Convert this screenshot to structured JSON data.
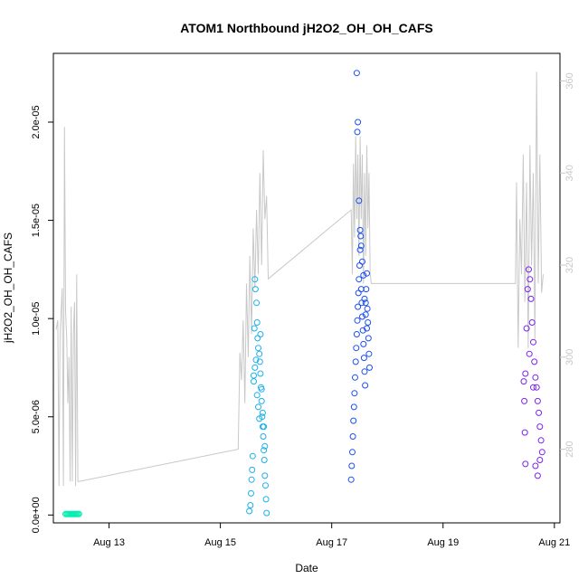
{
  "chart_data": {
    "type": "scatter",
    "title": "ATOM1 Northbound jH2O2_OH_OH_CAFS",
    "xlabel": "Date",
    "ylabel": "jH2O2_OH_OH_CAFS",
    "x_range_days": [
      12.0,
      21.1
    ],
    "ylim": [
      -4e-07,
      2.35e-05
    ],
    "y2lim": [
      264,
      366
    ],
    "x_ticks": [
      {
        "v": 13,
        "label": "Aug 13"
      },
      {
        "v": 15,
        "label": "Aug 15"
      },
      {
        "v": 17,
        "label": "Aug 17"
      },
      {
        "v": 19,
        "label": "Aug 19"
      },
      {
        "v": 21,
        "label": "Aug 21"
      }
    ],
    "y_ticks": [
      {
        "v": 0,
        "label": "0.0e+00"
      },
      {
        "v": 5e-06,
        "label": "5.0e-06"
      },
      {
        "v": 1e-05,
        "label": "1.0e-05"
      },
      {
        "v": 1.5e-05,
        "label": "1.5e-05"
      },
      {
        "v": 2e-05,
        "label": "2.0e-05"
      }
    ],
    "y2_ticks": [
      {
        "v": 280,
        "label": "280"
      },
      {
        "v": 300,
        "label": "300"
      },
      {
        "v": 320,
        "label": "320"
      },
      {
        "v": 340,
        "label": "340"
      },
      {
        "v": 360,
        "label": "360"
      }
    ],
    "right_axis_color": "#c8c8c8",
    "grid": false,
    "series": [
      {
        "color": "#00eeb0",
        "x": [
          12.22,
          12.24,
          12.26,
          12.28,
          12.3,
          12.32,
          12.34,
          12.36,
          12.38,
          12.4,
          12.42,
          12.44,
          12.46
        ],
        "y": [
          5e-08,
          5e-08,
          5e-08,
          5e-08,
          5e-08,
          5e-08,
          5e-08,
          5e-08,
          5e-08,
          5e-08,
          5e-08,
          5e-08,
          5e-08
        ]
      },
      {
        "color": "#1ab0ee",
        "x": [
          15.52,
          15.54,
          15.55,
          15.56,
          15.57,
          15.58,
          15.6,
          15.61,
          15.62,
          15.63,
          15.65,
          15.66,
          15.67,
          15.68,
          15.7,
          15.71,
          15.72,
          15.73,
          15.74,
          15.75,
          15.76,
          15.77,
          15.78,
          15.79,
          15.8,
          15.81,
          15.82,
          15.83,
          15.6,
          15.62,
          15.64,
          15.66,
          15.68,
          15.7,
          15.72,
          15.74,
          15.76,
          15.78,
          15.8
        ],
        "y": [
          2e-07,
          5e-07,
          1.1e-06,
          1.8e-06,
          2.3e-06,
          3e-06,
          6.8e-06,
          9.5e-06,
          1.2e-05,
          1.15e-05,
          1.08e-05,
          9.8e-06,
          9e-06,
          8.5e-06,
          8.2e-06,
          7.8e-06,
          9.2e-06,
          6.5e-06,
          5.8e-06,
          5e-06,
          4.5e-06,
          4e-06,
          3.3e-06,
          2.8e-06,
          2e-06,
          1.5e-06,
          8e-07,
          1e-07,
          7.1e-06,
          7.5e-06,
          7.9e-06,
          6.1e-06,
          5.5e-06,
          4.9e-06,
          7.2e-06,
          6.4e-06,
          5.2e-06,
          4.5e-06,
          3.5e-06
        ]
      },
      {
        "color": "#1a4ff0",
        "x": [
          17.35,
          17.36,
          17.37,
          17.38,
          17.39,
          17.4,
          17.41,
          17.42,
          17.43,
          17.44,
          17.45,
          17.46,
          17.47,
          17.48,
          17.49,
          17.5,
          17.51,
          17.52,
          17.53,
          17.54,
          17.55,
          17.56,
          17.57,
          17.58,
          17.59,
          17.6,
          17.61,
          17.62,
          17.63,
          17.64,
          17.65,
          17.66,
          17.67,
          17.68,
          17.45,
          17.46,
          17.47,
          17.49,
          17.51,
          17.53,
          17.55,
          17.57,
          17.59,
          17.61,
          17.63
        ],
        "y": [
          1.8e-06,
          2.5e-06,
          3.2e-06,
          4e-06,
          4.8e-06,
          5.5e-06,
          6.2e-06,
          7e-06,
          7.8e-06,
          8.5e-06,
          9.2e-06,
          9.9e-06,
          1.06e-05,
          1.13e-05,
          1.2e-05,
          1.27e-05,
          1.35e-05,
          1.42e-05,
          1.15e-05,
          1.08e-05,
          1.01e-05,
          9.4e-06,
          8.7e-06,
          8e-06,
          7.3e-06,
          6.6e-06,
          1.08e-05,
          1.15e-05,
          1.23e-05,
          1.05e-05,
          9.8e-06,
          9e-06,
          8.2e-06,
          7.5e-06,
          2.25e-05,
          1.95e-05,
          2e-05,
          1.6e-05,
          1.45e-05,
          1.37e-05,
          1.29e-05,
          1.22e-05,
          1.1e-05,
          1.02e-05,
          9.5e-06
        ]
      },
      {
        "color": "#7a22ee",
        "x": [
          20.45,
          20.46,
          20.47,
          20.48,
          20.5,
          20.52,
          20.54,
          20.56,
          20.58,
          20.6,
          20.62,
          20.64,
          20.66,
          20.68,
          20.7,
          20.72,
          20.74,
          20.76,
          20.78,
          20.48,
          20.55,
          20.62,
          20.66,
          20.7,
          20.74
        ],
        "y": [
          6.8e-06,
          5.8e-06,
          4.2e-06,
          2.6e-06,
          9.5e-06,
          1.15e-05,
          1.25e-05,
          1.2e-05,
          1.1e-05,
          9.8e-06,
          8.8e-06,
          7.8e-06,
          7e-06,
          6.5e-06,
          5.8e-06,
          5.2e-06,
          4.5e-06,
          3.8e-06,
          3.2e-06,
          7.2e-06,
          8.2e-06,
          6.5e-06,
          2.5e-06,
          2e-06,
          2.8e-06
        ]
      }
    ],
    "altitude_line": {
      "color": "#c8c8c8",
      "x": [
        12.05,
        12.08,
        12.1,
        12.12,
        12.14,
        12.16,
        12.18,
        12.2,
        12.22,
        12.24,
        12.26,
        12.28,
        12.3,
        12.32,
        12.34,
        12.36,
        12.38,
        12.4,
        12.42,
        12.44,
        12.46,
        15.32,
        15.35,
        15.38,
        15.41,
        15.44,
        15.47,
        15.5,
        15.53,
        15.56,
        15.59,
        15.62,
        15.65,
        15.68,
        15.71,
        15.74,
        15.77,
        15.8,
        15.83,
        15.86,
        17.35,
        17.37,
        17.39,
        17.41,
        17.43,
        17.45,
        17.47,
        17.49,
        17.51,
        17.53,
        17.55,
        17.57,
        17.59,
        17.61,
        17.63,
        17.65,
        17.67,
        17.69,
        17.71,
        20.3,
        20.32,
        20.35,
        20.38,
        20.41,
        20.44,
        20.47,
        20.5,
        20.53,
        20.56,
        20.59,
        20.62,
        20.65,
        20.68,
        20.71,
        20.74,
        20.77,
        20.8
      ],
      "y": [
        306,
        308,
        272,
        305,
        310,
        315,
        272,
        350,
        310,
        304,
        290,
        300,
        273,
        311,
        273,
        305,
        312,
        272,
        318,
        273,
        273,
        280,
        301,
        295,
        308,
        290,
        316,
        300,
        322,
        305,
        328,
        315,
        332,
        318,
        340,
        320,
        345,
        330,
        335,
        317,
        332,
        318,
        342,
        326,
        348,
        330,
        344,
        322,
        348,
        330,
        344,
        316,
        340,
        322,
        346,
        328,
        340,
        318,
        316,
        316,
        338,
        302,
        330,
        318,
        344,
        312,
        338,
        302,
        346,
        320,
        340,
        304,
        362,
        316,
        344,
        314,
        318
      ]
    }
  }
}
